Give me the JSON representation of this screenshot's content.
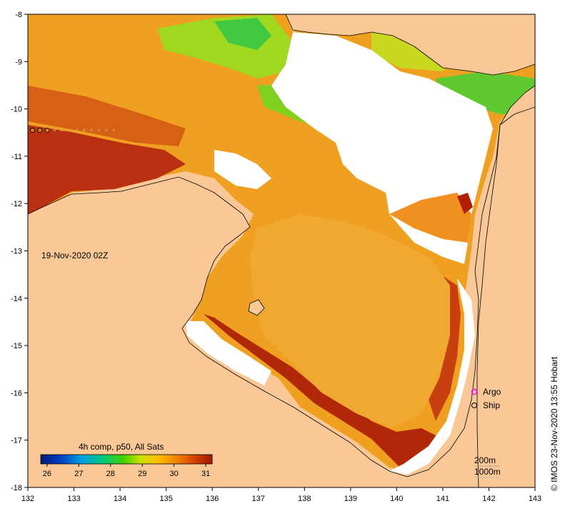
{
  "map": {
    "lon_range": [
      132,
      143
    ],
    "lat_range": [
      -18,
      -8
    ],
    "lon_ticks": [
      "132",
      "133",
      "134",
      "135",
      "136",
      "137",
      "138",
      "139",
      "140",
      "141",
      "142",
      "143"
    ],
    "lat_ticks": [
      "-8",
      "-9",
      "-10",
      "-11",
      "-12",
      "-13",
      "-14",
      "-15",
      "-16",
      "-17",
      "-18"
    ],
    "land_color": "#fac896",
    "nodata_color": "#ffffff"
  },
  "overlay": {
    "date_label": "19-Nov-2020 02Z",
    "colorbar_title": "4h comp, p50, All Sats",
    "colorbar_ticks": [
      "26",
      "27",
      "28",
      "29",
      "30",
      "31"
    ],
    "colorbar_range": [
      25.8,
      31.2
    ],
    "legend_argo": "Argo",
    "legend_ship": "Ship",
    "contour_200": "200m",
    "contour_1000": "1000m",
    "copyright": "© IMOS 23-Nov-2020 13:55 Hobart"
  }
}
